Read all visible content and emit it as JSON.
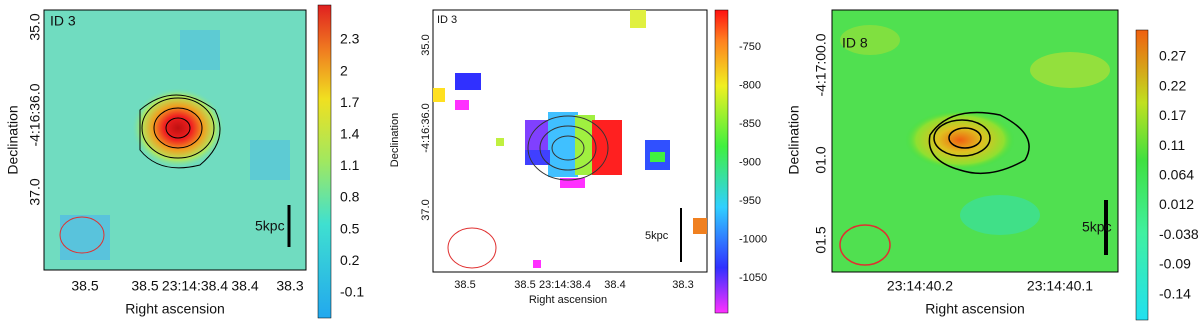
{
  "panels": [
    {
      "id_label": "ID 3",
      "scale_label": "5kpc",
      "x_label": "Right ascension",
      "y_label": "Declination",
      "x_ticks": [
        "38.5",
        "38.5",
        "23:14:38.4",
        "38.4",
        "38.3"
      ],
      "y_ticks": [
        "35.0",
        "-4:16:36.0",
        "37.0"
      ],
      "colorbar_ticks": [
        "2.3",
        "2",
        "1.7",
        "1.4",
        "1.1",
        "0.8",
        "0.5",
        "0.2",
        "-0.1"
      ]
    },
    {
      "id_label": "ID 3",
      "scale_label": "5kpc",
      "x_label": "Right ascension",
      "y_label": "Declination",
      "x_ticks": [
        "38.5",
        "38.5",
        "23:14:38.4",
        "38.4",
        "38.3"
      ],
      "y_ticks": [
        "35.0",
        "-4:16:36.0",
        "37.0"
      ],
      "colorbar_ticks": [
        "-750",
        "-800",
        "-850",
        "-900",
        "-950",
        "-1000",
        "-1050"
      ]
    },
    {
      "id_label": "ID 8",
      "scale_label": "5kpc",
      "x_label": "Right ascension",
      "y_label": "Declination",
      "x_ticks": [
        "23:14:40.2",
        "23:14:40.1"
      ],
      "y_ticks": [
        "-4:17:00.0",
        "01.0",
        "01.5"
      ],
      "colorbar_ticks": [
        "0.27",
        "0.22",
        "0.17",
        "0.11",
        "0.064",
        "0.012",
        "-0.038",
        "-0.09",
        "-0.14"
      ]
    }
  ]
}
